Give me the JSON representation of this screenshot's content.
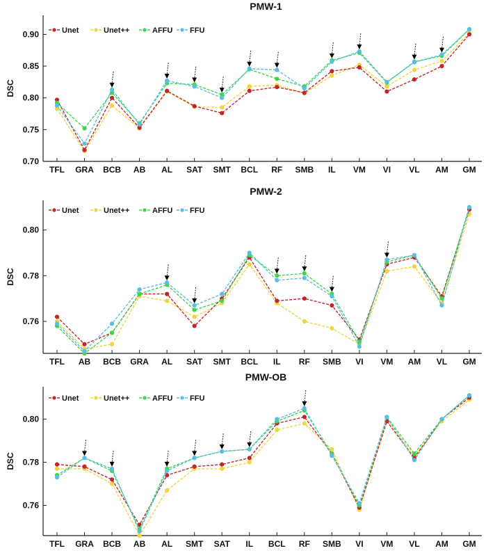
{
  "colors": {
    "Unet": "#c0262d",
    "Unet++": "#f2d43c",
    "AFFU": "#3cd84a",
    "FFU": "#5bbde3"
  },
  "chart_data": [
    {
      "type": "line",
      "title": "PMW-1",
      "ylabel": "DSC",
      "xlabel": "",
      "ylim": [
        0.7,
        0.93
      ],
      "yticks": [
        0.7,
        0.75,
        0.8,
        0.85,
        0.9
      ],
      "ytick_labels": [
        "0.70",
        "0.75",
        "0.80",
        "0.85",
        "0.90"
      ],
      "legend_location": "top-left",
      "categories": [
        "TFL",
        "GRA",
        "BCB",
        "AB",
        "AL",
        "SAT",
        "SMT",
        "BCL",
        "RF",
        "SMB",
        "IL",
        "VM",
        "VI",
        "VL",
        "AM",
        "GM"
      ],
      "series": [
        {
          "name": "Unet",
          "values": [
            0.797,
            0.718,
            0.8,
            0.753,
            0.811,
            0.787,
            0.776,
            0.811,
            0.817,
            0.808,
            0.842,
            0.848,
            0.81,
            0.829,
            0.85,
            0.9
          ]
        },
        {
          "name": "Unet++",
          "values": [
            0.783,
            0.716,
            0.788,
            0.752,
            0.81,
            0.786,
            0.785,
            0.818,
            0.82,
            0.807,
            0.835,
            0.852,
            0.818,
            0.844,
            0.858,
            0.902
          ]
        },
        {
          "name": "AFFU",
          "values": [
            0.792,
            0.752,
            0.808,
            0.76,
            0.823,
            0.821,
            0.805,
            0.845,
            0.83,
            0.818,
            0.859,
            0.871,
            0.824,
            0.857,
            0.866,
            0.908
          ]
        },
        {
          "name": "FFU",
          "values": [
            0.788,
            0.728,
            0.813,
            0.758,
            0.827,
            0.818,
            0.8,
            0.846,
            0.844,
            0.815,
            0.857,
            0.873,
            0.825,
            0.856,
            0.868,
            0.908
          ]
        }
      ],
      "arrow_categories": [
        "BCB",
        "AL",
        "SAT",
        "SMT",
        "BCL",
        "RF",
        "IL",
        "VM",
        "VL",
        "AM"
      ]
    },
    {
      "type": "line",
      "title": "PMW-2",
      "ylabel": "DSC",
      "xlabel": "",
      "ylim": [
        0.746,
        0.813
      ],
      "yticks": [
        0.76,
        0.78,
        0.8
      ],
      "ytick_labels": [
        "0.76",
        "0.78",
        "0.80"
      ],
      "legend_location": "top-left",
      "categories": [
        "TFL",
        "AB",
        "BCB",
        "GRA",
        "AL",
        "SAT",
        "SMT",
        "BCL",
        "IL",
        "RF",
        "SMB",
        "VI",
        "VM",
        "AM",
        "VL",
        "GM"
      ],
      "series": [
        {
          "name": "Unet",
          "values": [
            0.762,
            0.75,
            0.755,
            0.772,
            0.772,
            0.758,
            0.77,
            0.788,
            0.769,
            0.77,
            0.767,
            0.752,
            0.785,
            0.788,
            0.771,
            0.809
          ]
        },
        {
          "name": "Unet++",
          "values": [
            0.76,
            0.748,
            0.75,
            0.771,
            0.769,
            0.762,
            0.768,
            0.785,
            0.768,
            0.76,
            0.757,
            0.75,
            0.782,
            0.784,
            0.768,
            0.807
          ]
        },
        {
          "name": "AFFU",
          "values": [
            0.758,
            0.746,
            0.755,
            0.772,
            0.776,
            0.765,
            0.769,
            0.789,
            0.78,
            0.781,
            0.772,
            0.751,
            0.786,
            0.789,
            0.77,
            0.81
          ]
        },
        {
          "name": "FFU",
          "values": [
            0.759,
            0.747,
            0.759,
            0.774,
            0.777,
            0.767,
            0.772,
            0.79,
            0.778,
            0.779,
            0.771,
            0.749,
            0.787,
            0.789,
            0.767,
            0.81
          ]
        }
      ],
      "arrow_categories": [
        "AL",
        "SAT",
        "IL",
        "RF",
        "SMB",
        "VM"
      ]
    },
    {
      "type": "line",
      "title": "PMW-OB",
      "ylabel": "DSC",
      "xlabel": "",
      "ylim": [
        0.746,
        0.815
      ],
      "yticks": [
        0.76,
        0.78,
        0.8
      ],
      "ytick_labels": [
        "0.76",
        "0.78",
        "0.80"
      ],
      "legend_location": "top-left",
      "categories": [
        "TFL",
        "GRA",
        "BCB",
        "AB",
        "AL",
        "SMT",
        "SAT",
        "IL",
        "BCL",
        "RF",
        "SMB",
        "VI",
        "VM",
        "VL",
        "AM",
        "GM"
      ],
      "series": [
        {
          "name": "Unet",
          "values": [
            0.779,
            0.778,
            0.772,
            0.751,
            0.774,
            0.778,
            0.779,
            0.782,
            0.798,
            0.801,
            0.784,
            0.759,
            0.799,
            0.782,
            0.8,
            0.81
          ]
        },
        {
          "name": "Unet++",
          "values": [
            0.777,
            0.777,
            0.77,
            0.746,
            0.767,
            0.777,
            0.777,
            0.78,
            0.795,
            0.798,
            0.786,
            0.758,
            0.8,
            0.783,
            0.799,
            0.809
          ]
        },
        {
          "name": "AFFU",
          "values": [
            0.774,
            0.782,
            0.776,
            0.749,
            0.777,
            0.782,
            0.785,
            0.786,
            0.799,
            0.804,
            0.784,
            0.76,
            0.801,
            0.784,
            0.8,
            0.811
          ]
        },
        {
          "name": "FFU",
          "values": [
            0.773,
            0.782,
            0.777,
            0.748,
            0.776,
            0.782,
            0.785,
            0.786,
            0.8,
            0.805,
            0.783,
            0.761,
            0.801,
            0.781,
            0.8,
            0.811
          ]
        }
      ],
      "arrow_categories": [
        "GRA",
        "BCB",
        "AL",
        "SMT",
        "SAT",
        "IL",
        "RF"
      ]
    }
  ]
}
